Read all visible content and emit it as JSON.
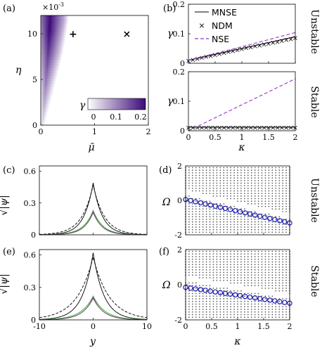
{
  "panel_labels": [
    "(a)",
    "(b)",
    "(c)",
    "(d)",
    "(e)",
    "(f)"
  ],
  "side_labels": {
    "unstable": "Unstable",
    "stable": "Stable",
    "unstable_color": "#e84a5f",
    "stable_color": "#e8a33a"
  },
  "colors": {
    "mnse": "#000000",
    "ndm": "#1f1fb4",
    "nse": "#9933cc",
    "green": "#22aa22",
    "magenta": "#cc33cc",
    "cmap_low": "#ffffff",
    "cmap_high": "#3b0a78",
    "eigen_gray": "#555555"
  },
  "panel_a": {
    "exponent": "×10",
    "exponent_power": "-3",
    "ylabel": "η",
    "xlabel": "μ̄",
    "xticks": [
      "0",
      "1",
      "2"
    ],
    "yticks": [
      "0",
      "5",
      "10"
    ],
    "colorbar_label": "γ",
    "colorbar_ticks": [
      "0",
      "0.1",
      "0.2"
    ],
    "markers": [
      {
        "name": "unstable-point",
        "symbol": "+",
        "x": 0.6,
        "y": 10,
        "color": "#e84a5f"
      },
      {
        "name": "stable-point",
        "symbol": "×",
        "x": 1.6,
        "y": 10,
        "color": "#e8a33a"
      }
    ]
  },
  "panel_b": {
    "legend": [
      "MNSE",
      "NDM",
      "NSE"
    ],
    "ylabel": "γ",
    "xlabel": "κ",
    "top_yticks": [
      "0",
      "0.1",
      "0.2"
    ],
    "bottom_yticks": [
      "0",
      "0.1",
      "0.2"
    ],
    "xticks": [
      "0",
      "0.5",
      "1",
      "1.5",
      "2"
    ]
  },
  "panel_c": {
    "ylabel": "√|ψ|",
    "yticks": [
      "0",
      "0.3",
      "0.6"
    ]
  },
  "panel_d": {
    "ylabel": "Ω",
    "yticks": [
      "-2",
      "0",
      "2"
    ]
  },
  "panel_e": {
    "ylabel": "√|ψ|",
    "xlabel": "y",
    "yticks": [
      "0",
      "0.3",
      "0.6"
    ],
    "xticks": [
      "-10",
      "0",
      "10"
    ]
  },
  "panel_f": {
    "ylabel": "Ω",
    "xlabel": "κ",
    "yticks": [
      "-2",
      "0",
      "2"
    ],
    "xticks": [
      "0",
      "0.5",
      "1",
      "1.5",
      "2"
    ]
  },
  "chart_data": [
    {
      "type": "heatmap",
      "panel": "a",
      "xlabel": "μ̄",
      "ylabel": "η",
      "xlim": [
        0,
        2
      ],
      "ylim": [
        0,
        0.012
      ],
      "clim": [
        0,
        0.22
      ],
      "instability_boundary": [
        [
          0.08,
          0
        ],
        [
          0.25,
          0.004
        ],
        [
          0.42,
          0.008
        ],
        [
          0.52,
          0.0115
        ]
      ]
    },
    {
      "type": "line",
      "panel": "b-top",
      "xlabel": "",
      "ylabel": "γ",
      "xlim": [
        0,
        2
      ],
      "ylim": [
        0,
        0.2
      ],
      "x": [
        0,
        0.5,
        1,
        1.5,
        2
      ],
      "series": [
        {
          "name": "MNSE",
          "values": [
            0.01,
            0.03,
            0.05,
            0.07,
            0.09
          ]
        },
        {
          "name": "NDM",
          "values": [
            0.01,
            0.03,
            0.05,
            0.068,
            0.087
          ]
        },
        {
          "name": "NSE",
          "values": [
            0.01,
            0.033,
            0.056,
            0.08,
            0.104
          ]
        }
      ]
    },
    {
      "type": "line",
      "panel": "b-bottom",
      "xlabel": "κ",
      "ylabel": "γ",
      "xlim": [
        0,
        2
      ],
      "ylim": [
        0,
        0.2
      ],
      "x": [
        0,
        0.5,
        1,
        1.5,
        2
      ],
      "series": [
        {
          "name": "MNSE",
          "values": [
            0.012,
            0.012,
            0.012,
            0.012,
            0.012
          ]
        },
        {
          "name": "NDM",
          "values": [
            0.012,
            0.012,
            0.012,
            0.012,
            0.012
          ]
        },
        {
          "name": "NSE",
          "values": [
            0.0,
            0.044,
            0.088,
            0.132,
            0.176
          ]
        }
      ]
    },
    {
      "type": "line",
      "panel": "c",
      "xlabel": "",
      "ylabel": "√|ψ|",
      "xlim": [
        -10,
        10
      ],
      "ylim": [
        0,
        0.65
      ],
      "profiles": [
        {
          "peak": 0.49,
          "width": 1.7,
          "color": "#000000",
          "dash": false
        },
        {
          "peak": 0.47,
          "width": 2.1,
          "color": "#000000",
          "dash": true
        },
        {
          "peak": 0.23,
          "width": 1.8,
          "color": "#22aa22",
          "dash": false
        },
        {
          "peak": 0.22,
          "width": 1.6,
          "color": "#cc33cc",
          "dash": false
        },
        {
          "peak": 0.21,
          "width": 1.7,
          "color": "#555555",
          "dash": false
        }
      ]
    },
    {
      "type": "scatter",
      "panel": "d",
      "xlabel": "",
      "ylabel": "Ω",
      "xlim": [
        0,
        2
      ],
      "ylim": [
        -2,
        2
      ],
      "eigen_line": {
        "start": 0.05,
        "slope": -0.68
      },
      "continuum_band": {
        "low": -1.85,
        "high": 1.9,
        "edge_start": 0.55,
        "edge_slope": -0.68
      }
    },
    {
      "type": "line",
      "panel": "e",
      "xlabel": "y",
      "ylabel": "√|ψ|",
      "xlim": [
        -10,
        10
      ],
      "ylim": [
        0,
        0.65
      ],
      "profiles": [
        {
          "peak": 0.62,
          "width": 2.0,
          "color": "#000000",
          "dash": false
        },
        {
          "peak": 0.58,
          "width": 3.0,
          "color": "#000000",
          "dash": true
        },
        {
          "peak": 0.22,
          "width": 2.2,
          "color": "#22aa22",
          "dash": false
        },
        {
          "peak": 0.21,
          "width": 1.9,
          "color": "#cc33cc",
          "dash": false
        },
        {
          "peak": 0.2,
          "width": 2.0,
          "color": "#555555",
          "dash": false
        }
      ]
    },
    {
      "type": "scatter",
      "panel": "f",
      "xlabel": "κ",
      "ylabel": "Ω",
      "xlim": [
        0,
        2
      ],
      "ylim": [
        -2,
        2
      ],
      "eigen_line": {
        "start": -0.15,
        "slope": -0.45
      },
      "continuum_band": {
        "low": -1.85,
        "high": 1.9,
        "edge_start": 0.45,
        "edge_slope": -0.5
      }
    }
  ]
}
